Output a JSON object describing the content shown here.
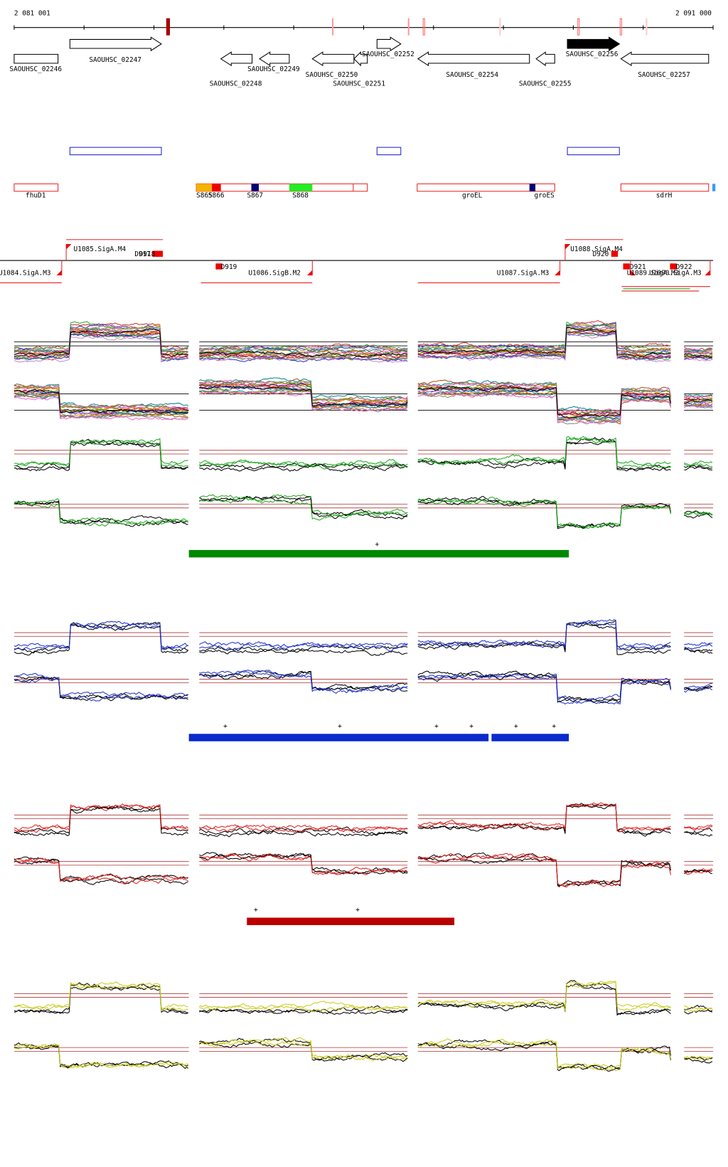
{
  "axis": {
    "start": "2 081 001",
    "end": "2 091 000"
  },
  "genes": [
    "SAOUHSC_02246",
    "SAOUHSC_02247",
    "SAOUHSC_02248",
    "SAOUHSC_02249",
    "SAOUHSC_02250",
    "SAOUHSC_02251",
    "SAOUHSC_02252",
    "SAOUHSC_02254",
    "SAOUHSC_02255",
    "SAOUHSC_02256",
    "SAOUHSC_02257"
  ],
  "operons": [
    "fhuD1",
    "S865",
    "S866",
    "S867",
    "S868",
    "groEL",
    "groES",
    "sdrH"
  ],
  "promoters": [
    "U1084.SigA.M3",
    "U1085.SigA.M4",
    "D917",
    "D918",
    "D919",
    "U1086.SigB.M2",
    "U1087.SigA.M3",
    "U1088.SigA.M4",
    "D920",
    "D921",
    "D922",
    "U1089.SigA.M3",
    "U1090.SigA.M3"
  ],
  "markers": {
    "green": [
      "+"
    ],
    "blue": [
      "+",
      "+",
      "+",
      "+",
      "+",
      "+"
    ],
    "red": [
      "+",
      "+"
    ]
  }
}
